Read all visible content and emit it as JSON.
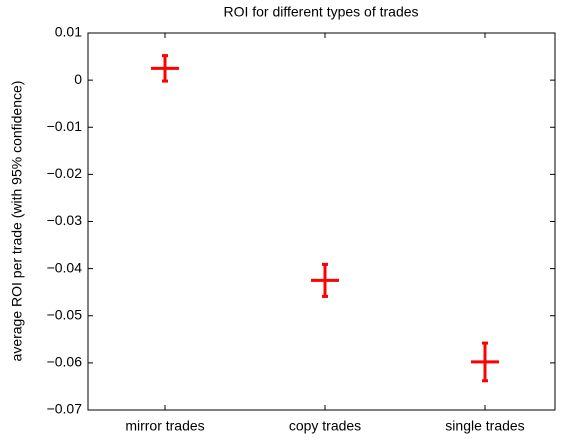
{
  "chart_data": {
    "type": "errorbar",
    "title": "ROI for different types of trades",
    "ylabel": "average ROI per trade (with 95% confidence)",
    "categories": [
      "mirror trades",
      "copy trades",
      "single trades"
    ],
    "series": [
      {
        "color": "#ff0000",
        "values": [
          0.0025,
          -0.0425,
          -0.0598
        ],
        "errors": [
          0.0027,
          0.0034,
          0.004
        ]
      }
    ],
    "ylim": [
      -0.07,
      0.01
    ],
    "yticks": [
      0.01,
      0,
      {
        "value": -0.01,
        "label": "−0.01"
      },
      {
        "value": -0.02,
        "label": "−0.02"
      },
      {
        "value": -0.03,
        "label": "−0.03"
      },
      {
        "value": -0.04,
        "label": "−0.04"
      },
      {
        "value": -0.05,
        "label": "−0.05"
      },
      {
        "value": -0.06,
        "label": "−0.06"
      },
      {
        "value": -0.07,
        "label": "−0.07"
      }
    ]
  }
}
